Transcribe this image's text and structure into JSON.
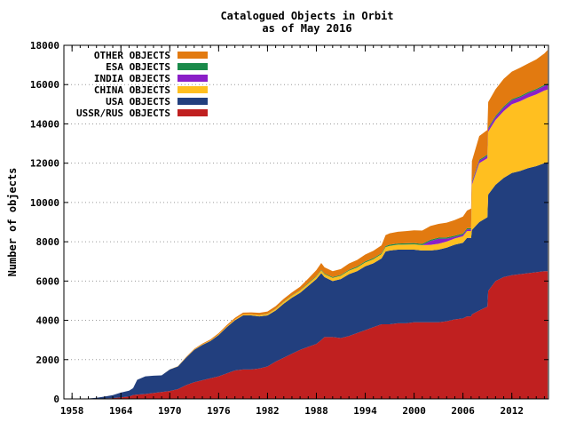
{
  "chart_data": {
    "type": "area",
    "title": "Catalogued Objects in Orbit",
    "subtitle": "as of May 2016",
    "xlabel": "",
    "ylabel": "Number of objects",
    "xlim": [
      1957,
      2016.5
    ],
    "ylim": [
      0,
      18000
    ],
    "x_ticks": [
      1958,
      1964,
      1970,
      1976,
      1982,
      1988,
      1994,
      2000,
      2006,
      2012
    ],
    "y_ticks": [
      0,
      2000,
      4000,
      6000,
      8000,
      10000,
      12000,
      14000,
      16000,
      18000
    ],
    "x_minor_step": 1,
    "grid": {
      "horizontal": true,
      "vertical": false,
      "style": "dotted"
    },
    "legend_position": "top-left",
    "stacked": true,
    "x": [
      1957,
      1958,
      1959,
      1960,
      1961,
      1962,
      1963,
      1964,
      1965,
      1965.5,
      1966,
      1967,
      1968,
      1969,
      1970,
      1971,
      1972,
      1973,
      1974,
      1975,
      1976,
      1977,
      1978,
      1979,
      1980,
      1981,
      1982,
      1983,
      1984,
      1985,
      1986,
      1987,
      1988,
      1988.6,
      1989,
      1990,
      1991,
      1992,
      1993,
      1994,
      1995,
      1996,
      1996.5,
      1997,
      1998,
      1999,
      2000,
      2001,
      2002,
      2003,
      2004,
      2005,
      2006,
      2006.5,
      2007,
      2007.1,
      2008,
      2009,
      2009.1,
      2010,
      2011,
      2012,
      2013,
      2014,
      2015,
      2016,
      2016.4
    ],
    "series": [
      {
        "name": "USSR/RUS OBJECTS",
        "color": "#c02020",
        "values": [
          0,
          0,
          0,
          0,
          5,
          20,
          40,
          80,
          120,
          200,
          220,
          250,
          300,
          350,
          400,
          500,
          700,
          850,
          950,
          1050,
          1150,
          1300,
          1450,
          1500,
          1500,
          1550,
          1650,
          1900,
          2100,
          2300,
          2500,
          2650,
          2800,
          3000,
          3150,
          3150,
          3100,
          3200,
          3350,
          3500,
          3650,
          3800,
          3800,
          3800,
          3850,
          3850,
          3900,
          3900,
          3900,
          3900,
          3950,
          4050,
          4100,
          4200,
          4200,
          4300,
          4500,
          4700,
          5500,
          6000,
          6200,
          6300,
          6350,
          6400,
          6450,
          6500,
          6500
        ]
      },
      {
        "name": "USA OBJECTS",
        "color": "#223f7e",
        "values": [
          0,
          0,
          0,
          20,
          50,
          100,
          150,
          240,
          300,
          350,
          750,
          900,
          880,
          850,
          1100,
          1150,
          1400,
          1650,
          1800,
          1900,
          2100,
          2350,
          2550,
          2750,
          2750,
          2650,
          2600,
          2600,
          2750,
          2850,
          2900,
          3100,
          3300,
          3400,
          3050,
          2850,
          3000,
          3150,
          3150,
          3250,
          3250,
          3350,
          3700,
          3750,
          3750,
          3750,
          3700,
          3650,
          3650,
          3700,
          3750,
          3800,
          3850,
          4000,
          4000,
          4300,
          4500,
          4550,
          4900,
          4900,
          5050,
          5200,
          5250,
          5350,
          5400,
          5500,
          5550
        ]
      },
      {
        "name": "CHINA OBJECTS",
        "color": "#ffbf20",
        "values": [
          0,
          0,
          0,
          0,
          0,
          0,
          0,
          0,
          0,
          0,
          0,
          0,
          0,
          0,
          5,
          10,
          15,
          20,
          25,
          30,
          35,
          40,
          45,
          50,
          55,
          60,
          70,
          80,
          90,
          100,
          110,
          120,
          130,
          140,
          150,
          160,
          170,
          180,
          190,
          200,
          210,
          220,
          230,
          240,
          250,
          260,
          270,
          280,
          290,
          300,
          310,
          320,
          330,
          350,
          350,
          2300,
          3000,
          3000,
          3200,
          3300,
          3400,
          3500,
          3550,
          3600,
          3650,
          3700,
          3700
        ]
      },
      {
        "name": "INDIA OBJECTS",
        "color": "#8b1fc8",
        "values": [
          0,
          0,
          0,
          0,
          0,
          0,
          0,
          0,
          0,
          0,
          0,
          0,
          0,
          0,
          0,
          0,
          0,
          0,
          0,
          0,
          0,
          0,
          0,
          0,
          0,
          0,
          0,
          0,
          0,
          0,
          0,
          0,
          0,
          0,
          0,
          0,
          0,
          0,
          0,
          0,
          0,
          0,
          0,
          0,
          0,
          0,
          0,
          0,
          200,
          250,
          150,
          80,
          80,
          80,
          80,
          100,
          120,
          130,
          150,
          150,
          180,
          200,
          200,
          210,
          220,
          230,
          250
        ]
      },
      {
        "name": "ESA OBJECTS",
        "color": "#1a8a4a",
        "values": [
          0,
          0,
          0,
          0,
          0,
          0,
          0,
          0,
          0,
          0,
          0,
          0,
          0,
          0,
          0,
          0,
          0,
          0,
          0,
          0,
          0,
          0,
          0,
          0,
          0,
          10,
          10,
          10,
          20,
          20,
          20,
          30,
          30,
          30,
          30,
          40,
          40,
          40,
          50,
          50,
          50,
          50,
          50,
          60,
          60,
          60,
          60,
          60,
          60,
          60,
          60,
          60,
          60,
          60,
          60,
          60,
          60,
          60,
          60,
          60,
          60,
          60,
          60,
          60,
          60,
          60,
          60
        ]
      },
      {
        "name": "OTHER OBJECTS",
        "color": "#e27a10",
        "values": [
          0,
          0,
          0,
          0,
          0,
          0,
          0,
          0,
          0,
          0,
          0,
          0,
          0,
          0,
          0,
          10,
          20,
          30,
          40,
          50,
          60,
          70,
          80,
          90,
          100,
          110,
          120,
          130,
          140,
          150,
          180,
          220,
          300,
          350,
          320,
          300,
          300,
          320,
          330,
          350,
          380,
          400,
          560,
          580,
          600,
          620,
          650,
          680,
          700,
          700,
          750,
          800,
          860,
          900,
          1000,
          1050,
          1200,
          1250,
          1300,
          1350,
          1400,
          1400,
          1450,
          1450,
          1500,
          1600,
          1700
        ]
      }
    ]
  }
}
